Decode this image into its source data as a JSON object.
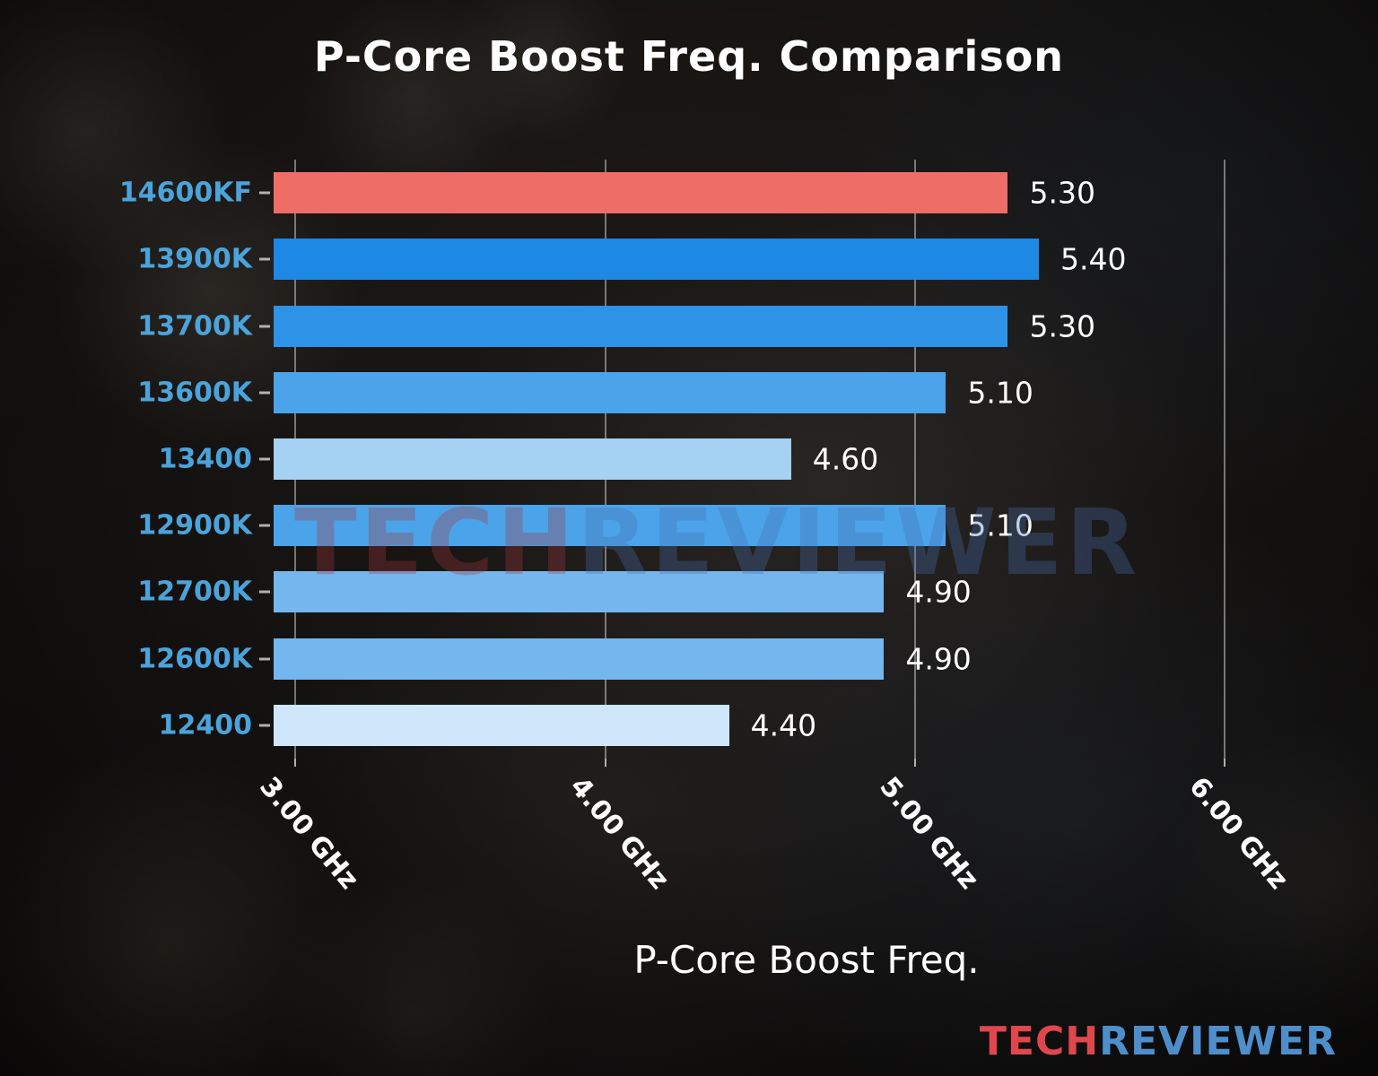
{
  "title": "P-Core Boost Freq. Comparison",
  "watermark": {
    "tech": "TECH",
    "reviewer": "REVIEWER"
  },
  "logo": {
    "tech": "TECH",
    "reviewer": "REVIEWER"
  },
  "colors": {
    "category_label": "#4ba3da",
    "value_label": "#ffffff",
    "tick_label": "#ffffff",
    "title": "#ffffff",
    "gridline": "rgba(215,215,215,0.5)",
    "highlight_bar": "#ee6d66",
    "logo_tech": "#e0474d",
    "logo_reviewer": "#4e8ecb",
    "watermark_tech": "#a23842",
    "watermark_reviewer": "#4a6fb0"
  },
  "chart_data": {
    "type": "bar",
    "orientation": "horizontal",
    "title": "P-Core Boost Freq. Comparison",
    "xlabel": "P-Core Boost Freq.",
    "categories": [
      "14600KF",
      "13900K",
      "13700K",
      "13600K",
      "13400",
      "12900K",
      "12700K",
      "12600K",
      "12400"
    ],
    "values": [
      5.3,
      5.4,
      5.3,
      5.1,
      4.6,
      5.1,
      4.9,
      4.9,
      4.4
    ],
    "value_labels": [
      "5.30",
      "5.40",
      "5.30",
      "5.10",
      "4.60",
      "5.10",
      "4.90",
      "4.90",
      "4.40"
    ],
    "bar_colors": [
      "#ee6d66",
      "#1e88e5",
      "#2e92e7",
      "#4ba3e9",
      "#a5d1f3",
      "#4ba3e9",
      "#74b7ee",
      "#74b7ee",
      "#cfe7fa"
    ],
    "unit": "GHz",
    "xlim": [
      2.93,
      6.37
    ],
    "xticks": [
      3,
      4,
      5,
      6
    ],
    "xtick_labels": [
      "3.00 GHz",
      "4.00 GHz",
      "5.00 GHz",
      "6.00 GHz"
    ],
    "grid": true,
    "legend": false
  }
}
